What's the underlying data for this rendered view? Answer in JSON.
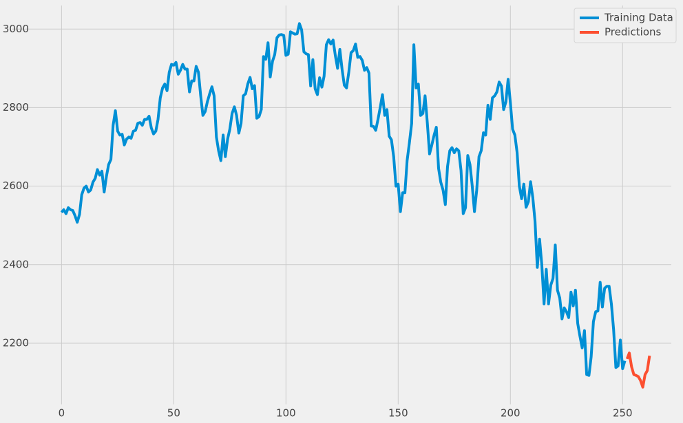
{
  "chart_data": {
    "type": "line",
    "xlim": [
      -13,
      271.7
    ],
    "ylim": [
      2044,
      3060
    ],
    "xticks": [
      0,
      50,
      100,
      150,
      200,
      250
    ],
    "yticks": [
      2200,
      2400,
      2600,
      2800,
      3000
    ],
    "grid": true,
    "legend": "upper right",
    "series": [
      {
        "name": "Training Data",
        "color": "#008fd5",
        "x": [
          0,
          1,
          2,
          3,
          4,
          5,
          6,
          7,
          8,
          9,
          10,
          11,
          12,
          13,
          14,
          15,
          16,
          17,
          18,
          19,
          20,
          21,
          22,
          23,
          24,
          25,
          26,
          27,
          28,
          29,
          30,
          31,
          32,
          33,
          34,
          35,
          36,
          37,
          38,
          39,
          40,
          41,
          42,
          43,
          44,
          45,
          46,
          47,
          48,
          49,
          50,
          51,
          52,
          53,
          54,
          55,
          56,
          57,
          58,
          59,
          60,
          61,
          62,
          63,
          64,
          65,
          66,
          67,
          68,
          69,
          70,
          71,
          72,
          73,
          74,
          75,
          76,
          77,
          78,
          79,
          80,
          81,
          82,
          83,
          84,
          85,
          86,
          87,
          88,
          89,
          90,
          91,
          92,
          93,
          94,
          95,
          96,
          97,
          98,
          99,
          100,
          101,
          102,
          103,
          104,
          105,
          106,
          107,
          108,
          109,
          110,
          111,
          112,
          113,
          114,
          115,
          116,
          117,
          118,
          119,
          120,
          121,
          122,
          123,
          124,
          125,
          126,
          127,
          128,
          129,
          130,
          131,
          132,
          133,
          134,
          135,
          136,
          137,
          138,
          139,
          140,
          141,
          142,
          143,
          144,
          145,
          146,
          147,
          148,
          149,
          150,
          151,
          152,
          153,
          154,
          155,
          156,
          157,
          158,
          159,
          160,
          161,
          162,
          163,
          164,
          165,
          166,
          167,
          168,
          169,
          170,
          171,
          172,
          173,
          174,
          175,
          176,
          177,
          178,
          179,
          180,
          181,
          182,
          183,
          184,
          185,
          186,
          187,
          188,
          189,
          190,
          191,
          192,
          193,
          194,
          195,
          196,
          197,
          198,
          199,
          200,
          201,
          202,
          203,
          204,
          205,
          206,
          207,
          208,
          209,
          210,
          211,
          212,
          213,
          214,
          215,
          216,
          217,
          218,
          219,
          220,
          221,
          222,
          223,
          224,
          225,
          226,
          227,
          228,
          229,
          230,
          231,
          232,
          233,
          234,
          235,
          236,
          237,
          238,
          239,
          240,
          241,
          242,
          243,
          244,
          245,
          246,
          247,
          248,
          249,
          250,
          251
        ],
        "values": [
          2533,
          2540,
          2530,
          2545,
          2540,
          2538,
          2525,
          2508,
          2528,
          2578,
          2595,
          2600,
          2585,
          2590,
          2610,
          2620,
          2642,
          2628,
          2638,
          2585,
          2625,
          2655,
          2668,
          2755,
          2792,
          2740,
          2730,
          2732,
          2705,
          2720,
          2725,
          2722,
          2740,
          2742,
          2760,
          2762,
          2755,
          2770,
          2770,
          2778,
          2748,
          2733,
          2740,
          2770,
          2825,
          2850,
          2860,
          2843,
          2890,
          2910,
          2908,
          2915,
          2885,
          2895,
          2910,
          2898,
          2898,
          2840,
          2868,
          2868,
          2905,
          2890,
          2830,
          2780,
          2790,
          2815,
          2835,
          2853,
          2830,
          2725,
          2690,
          2665,
          2730,
          2675,
          2720,
          2745,
          2785,
          2802,
          2780,
          2735,
          2760,
          2830,
          2835,
          2860,
          2877,
          2848,
          2856,
          2773,
          2777,
          2795,
          2930,
          2923,
          2965,
          2878,
          2918,
          2935,
          2978,
          2985,
          2986,
          2984,
          2933,
          2936,
          2993,
          2990,
          2987,
          2988,
          3014,
          2998,
          2942,
          2937,
          2935,
          2855,
          2922,
          2848,
          2833,
          2876,
          2852,
          2880,
          2960,
          2973,
          2962,
          2972,
          2933,
          2900,
          2948,
          2898,
          2857,
          2850,
          2890,
          2940,
          2945,
          2962,
          2928,
          2930,
          2920,
          2895,
          2902,
          2888,
          2753,
          2752,
          2742,
          2770,
          2800,
          2833,
          2780,
          2795,
          2727,
          2718,
          2675,
          2600,
          2605,
          2535,
          2583,
          2583,
          2665,
          2710,
          2760,
          2960,
          2850,
          2860,
          2780,
          2785,
          2830,
          2760,
          2682,
          2705,
          2730,
          2750,
          2645,
          2610,
          2590,
          2553,
          2650,
          2690,
          2698,
          2685,
          2695,
          2690,
          2640,
          2530,
          2545,
          2678,
          2655,
          2600,
          2535,
          2590,
          2675,
          2690,
          2736,
          2730,
          2806,
          2770,
          2825,
          2830,
          2840,
          2865,
          2855,
          2795,
          2815,
          2872,
          2812,
          2745,
          2730,
          2685,
          2600,
          2568,
          2605,
          2546,
          2560,
          2611,
          2570,
          2510,
          2393,
          2465,
          2400,
          2300,
          2388,
          2300,
          2348,
          2365,
          2450,
          2335,
          2315,
          2262,
          2290,
          2280,
          2265,
          2330,
          2295,
          2335,
          2250,
          2218,
          2188,
          2232,
          2120,
          2118,
          2165,
          2255,
          2280,
          2282,
          2355,
          2292,
          2340,
          2345,
          2345,
          2300,
          2235,
          2138,
          2142,
          2208,
          2135,
          2155
        ]
      },
      {
        "name": "Predictions",
        "color": "#fc4f30",
        "x": [
          252,
          253,
          254,
          255,
          256,
          257,
          258,
          259,
          260,
          261,
          262
        ],
        "values": [
          2160,
          2175,
          2140,
          2120,
          2118,
          2115,
          2105,
          2088,
          2120,
          2130,
          2168
        ]
      }
    ]
  }
}
